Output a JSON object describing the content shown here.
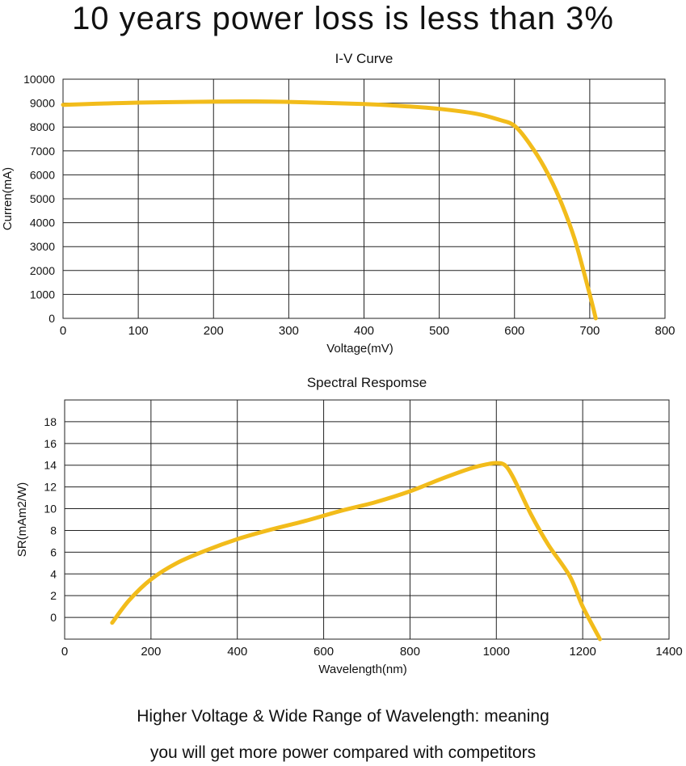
{
  "headline": "10 years power loss is less than 3%",
  "footer": {
    "line1": "Higher Voltage & Wide Range of Wavelength: meaning",
    "line2": "you will get more power compared with competitors"
  },
  "chart_data": [
    {
      "type": "line",
      "title": "I-V Curve",
      "xlabel": "Voltage(mV)",
      "ylabel": "Curren(mA)",
      "xlim": [
        0,
        800
      ],
      "ylim": [
        0,
        10000
      ],
      "xticks": [
        0,
        100,
        200,
        300,
        400,
        500,
        600,
        700,
        800
      ],
      "yticks": [
        0,
        1000,
        2000,
        3000,
        4000,
        5000,
        6000,
        7000,
        8000,
        9000,
        10000
      ],
      "grid": true,
      "line_color": "#f2bc1b",
      "series": [
        {
          "x": [
            0,
            100,
            200,
            250,
            300,
            400,
            450,
            500,
            550,
            580,
            600,
            620,
            640,
            660,
            680,
            700,
            708
          ],
          "y": [
            8930,
            9020,
            9060,
            9070,
            9050,
            8960,
            8880,
            8760,
            8550,
            8300,
            8050,
            7300,
            6300,
            5000,
            3300,
            1000,
            0
          ]
        }
      ]
    },
    {
      "type": "line",
      "title": "Spectral Respomse",
      "xlabel": "Wavelength(nm)",
      "ylabel": "SR(mAm2/W)",
      "xlim": [
        0,
        1400
      ],
      "ylim": [
        -2,
        20
      ],
      "xticks": [
        0,
        200,
        400,
        600,
        800,
        1000,
        1200,
        1400
      ],
      "yticks": [
        0,
        2,
        4,
        6,
        8,
        10,
        12,
        14,
        16,
        18
      ],
      "grid": true,
      "line_color": "#f2bc1b",
      "series": [
        {
          "x": [
            110,
            150,
            200,
            260,
            330,
            400,
            480,
            560,
            640,
            720,
            800,
            870,
            940,
            980,
            1000,
            1020,
            1040,
            1080,
            1120,
            1170,
            1200,
            1240
          ],
          "y": [
            -0.5,
            1.6,
            3.5,
            5.0,
            6.2,
            7.2,
            8.1,
            8.9,
            9.8,
            10.6,
            11.6,
            12.7,
            13.7,
            14.1,
            14.2,
            14.0,
            12.8,
            9.5,
            6.7,
            3.8,
            1.0,
            -2.0
          ]
        }
      ]
    }
  ]
}
